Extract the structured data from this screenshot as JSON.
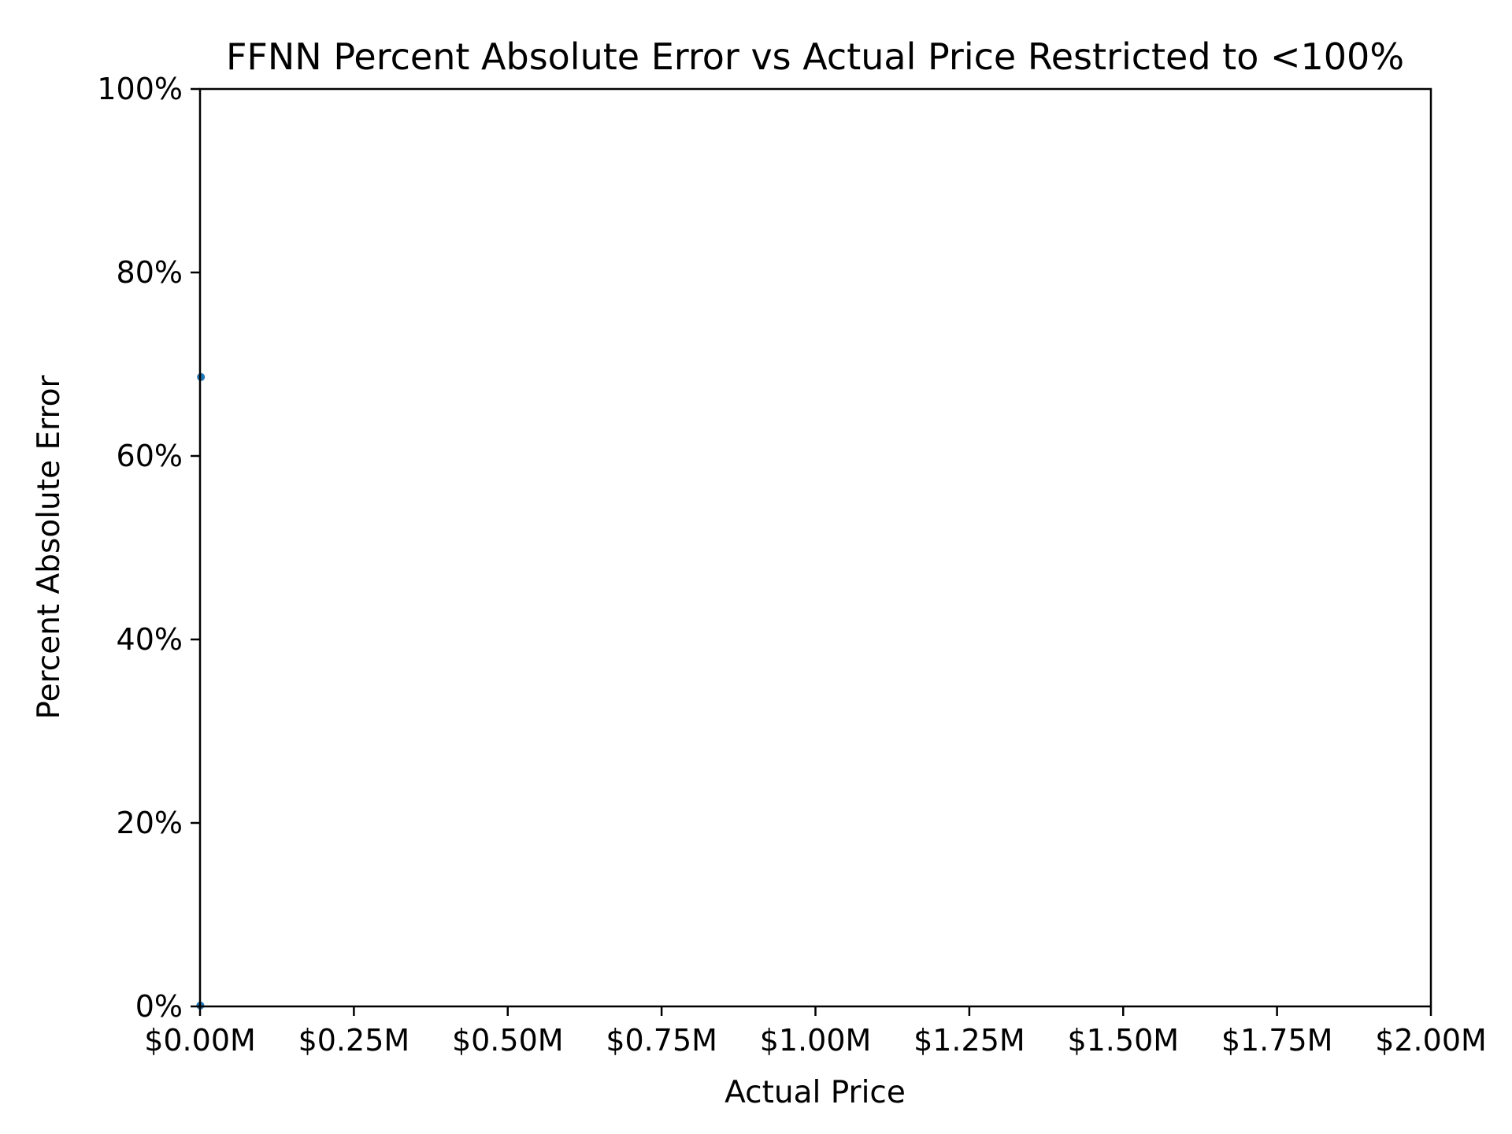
{
  "chart_data": {
    "type": "scatter",
    "title": "FFNN Percent Absolute Error vs Actual Price Restricted to <100%",
    "xlabel": "Actual Price",
    "ylabel": "Percent Absolute Error",
    "xlim": [
      0,
      2000000
    ],
    "ylim": [
      0,
      100
    ],
    "x_ticks": [
      0,
      250000,
      500000,
      750000,
      1000000,
      1250000,
      1500000,
      1750000,
      2000000
    ],
    "x_tick_labels": [
      "$0.00M",
      "$0.25M",
      "$0.50M",
      "$0.75M",
      "$1.00M",
      "$1.25M",
      "$1.50M",
      "$1.75M",
      "$2.00M"
    ],
    "y_ticks": [
      0,
      20,
      40,
      60,
      80,
      100
    ],
    "y_tick_labels": [
      "0%",
      "20%",
      "40%",
      "60%",
      "80%",
      "100%"
    ],
    "grid": false,
    "series": [
      {
        "color": "#1f77b4",
        "points": [
          {
            "x": 1500,
            "y": 68.6
          },
          {
            "x": 500,
            "y": 0.1
          }
        ]
      }
    ]
  }
}
